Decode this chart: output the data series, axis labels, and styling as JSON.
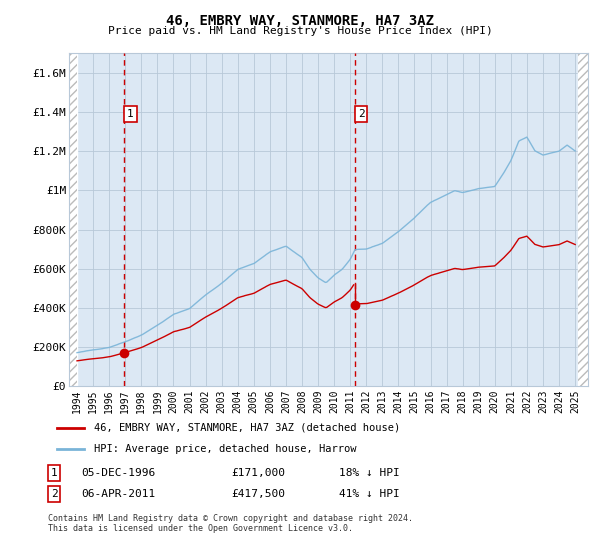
{
  "title": "46, EMBRY WAY, STANMORE, HA7 3AZ",
  "subtitle": "Price paid vs. HM Land Registry's House Price Index (HPI)",
  "ylabel_ticks": [
    "£0",
    "£200K",
    "£400K",
    "£600K",
    "£800K",
    "£1M",
    "£1.2M",
    "£1.4M",
    "£1.6M"
  ],
  "ytick_vals": [
    0,
    200000,
    400000,
    600000,
    800000,
    1000000,
    1200000,
    1400000,
    1600000
  ],
  "ylim": [
    0,
    1700000
  ],
  "sale1_date_num": 1996.92,
  "sale1_price": 171000,
  "sale2_date_num": 2011.27,
  "sale2_price": 417500,
  "hpi_color": "#7ab4d8",
  "sale_color": "#cc0000",
  "vline_color": "#cc0000",
  "grid_color": "#b8c8d8",
  "background_color": "#dce8f4",
  "legend_line1": "46, EMBRY WAY, STANMORE, HA7 3AZ (detached house)",
  "legend_line2": "HPI: Average price, detached house, Harrow",
  "footer": "Contains HM Land Registry data © Crown copyright and database right 2024.\nThis data is licensed under the Open Government Licence v3.0.",
  "xlim_start": 1993.5,
  "xlim_end": 2025.8
}
